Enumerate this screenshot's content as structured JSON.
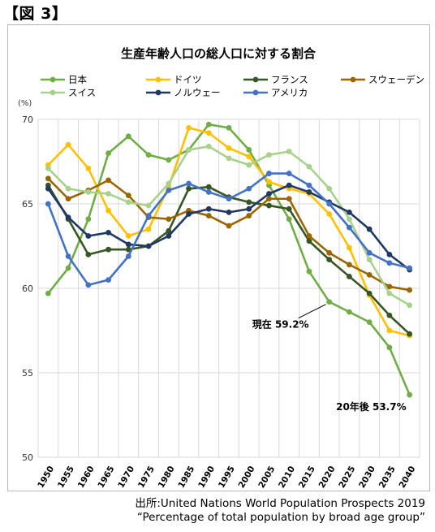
{
  "figure_label": "【図 3】",
  "source_line1": "出所:United Nations World Population Prospects 2019",
  "source_line2": "“Percentage of total population by broad age group”",
  "chart_data": {
    "type": "line",
    "title": "生産年齢人口の総人口に対する割合",
    "ylabel_unit": "(%)",
    "ylim": [
      50,
      70
    ],
    "yticks": [
      50,
      55,
      60,
      65,
      70
    ],
    "grid": true,
    "legend_position": "top",
    "x": [
      "1950",
      "1955",
      "1960",
      "1965",
      "1970",
      "1975",
      "1980",
      "1985",
      "1990",
      "1995",
      "2000",
      "2005",
      "2010",
      "2015",
      "2020",
      "2025",
      "2030",
      "2035",
      "2040"
    ],
    "series": [
      {
        "name": "日本",
        "color": "#70ad47",
        "values": [
          59.7,
          61.2,
          64.1,
          68.0,
          69.0,
          67.9,
          67.6,
          68.2,
          69.7,
          69.5,
          68.2,
          66.1,
          64.1,
          61.0,
          59.2,
          58.6,
          58.0,
          56.5,
          53.7
        ]
      },
      {
        "name": "ドイツ",
        "color": "#ffc000",
        "values": [
          67.3,
          68.5,
          67.1,
          64.6,
          63.1,
          63.5,
          66.0,
          69.5,
          69.2,
          68.3,
          67.8,
          66.3,
          65.9,
          65.6,
          64.4,
          62.4,
          59.6,
          57.5,
          57.2
        ]
      },
      {
        "name": "フランス",
        "color": "#375623",
        "values": [
          66.1,
          64.1,
          62.0,
          62.3,
          62.3,
          62.5,
          63.4,
          65.9,
          66.0,
          65.4,
          65.1,
          64.9,
          64.7,
          62.8,
          61.7,
          60.7,
          59.7,
          58.4,
          57.3
        ]
      },
      {
        "name": "スウェーデン",
        "color": "#996600",
        "values": [
          66.5,
          65.3,
          65.8,
          66.4,
          65.5,
          64.2,
          64.1,
          64.6,
          64.3,
          63.7,
          64.3,
          65.3,
          65.3,
          63.1,
          62.1,
          61.4,
          60.8,
          60.1,
          59.9
        ]
      },
      {
        "name": "スイス",
        "color": "#a9d18e",
        "values": [
          67.1,
          65.9,
          65.7,
          65.6,
          65.1,
          64.9,
          66.2,
          68.2,
          68.4,
          67.7,
          67.3,
          67.9,
          68.1,
          67.2,
          65.9,
          64.1,
          61.7,
          59.7,
          59.0
        ]
      },
      {
        "name": "ノルウェー",
        "color": "#1f3864",
        "values": [
          65.9,
          64.2,
          63.1,
          63.3,
          62.6,
          62.5,
          63.1,
          64.4,
          64.7,
          64.5,
          64.7,
          65.6,
          66.1,
          65.7,
          65.1,
          64.5,
          63.5,
          62.0,
          61.1
        ]
      },
      {
        "name": "アメリカ",
        "color": "#4472c4",
        "values": [
          65.0,
          61.9,
          60.2,
          60.5,
          61.9,
          64.3,
          65.8,
          66.2,
          65.7,
          65.3,
          65.9,
          66.8,
          66.8,
          66.1,
          65.0,
          63.6,
          62.1,
          61.5,
          61.2
        ]
      }
    ],
    "annotations": [
      {
        "text": "現在 59.2%",
        "x": "2020",
        "y": 59.2
      },
      {
        "text": "20年後 53.7%",
        "x": "2040",
        "y": 53.7
      }
    ]
  }
}
